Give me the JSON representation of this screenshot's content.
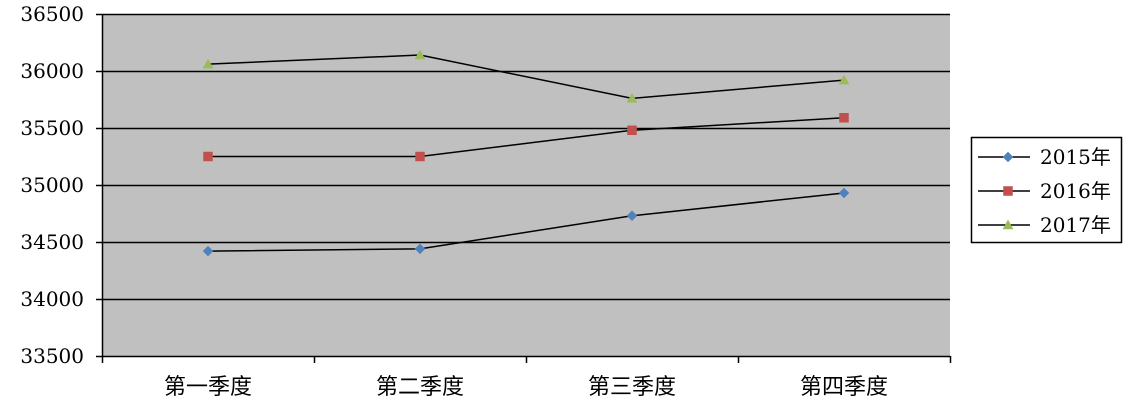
{
  "chart_data": {
    "type": "line",
    "title": "",
    "xlabel": "",
    "ylabel": "",
    "categories": [
      "第一季度",
      "第二季度",
      "第三季度",
      "第四季度"
    ],
    "ylim": [
      33500,
      36500
    ],
    "yticks": [
      33500,
      34000,
      34500,
      35000,
      35500,
      36000,
      36500
    ],
    "grid": true,
    "legend": "right",
    "background": "#c0c0c0",
    "line_color": "#000000",
    "series": [
      {
        "name": "2015年",
        "values": [
          34420,
          34440,
          34730,
          34930
        ],
        "marker": "diamond",
        "marker_color": "#4f81bd"
      },
      {
        "name": "2016年",
        "values": [
          35250,
          35250,
          35480,
          35590
        ],
        "marker": "square",
        "marker_color": "#c0504d"
      },
      {
        "name": "2017年",
        "values": [
          36060,
          36140,
          35760,
          35920
        ],
        "marker": "triangle",
        "marker_color": "#9bbb59"
      }
    ]
  }
}
